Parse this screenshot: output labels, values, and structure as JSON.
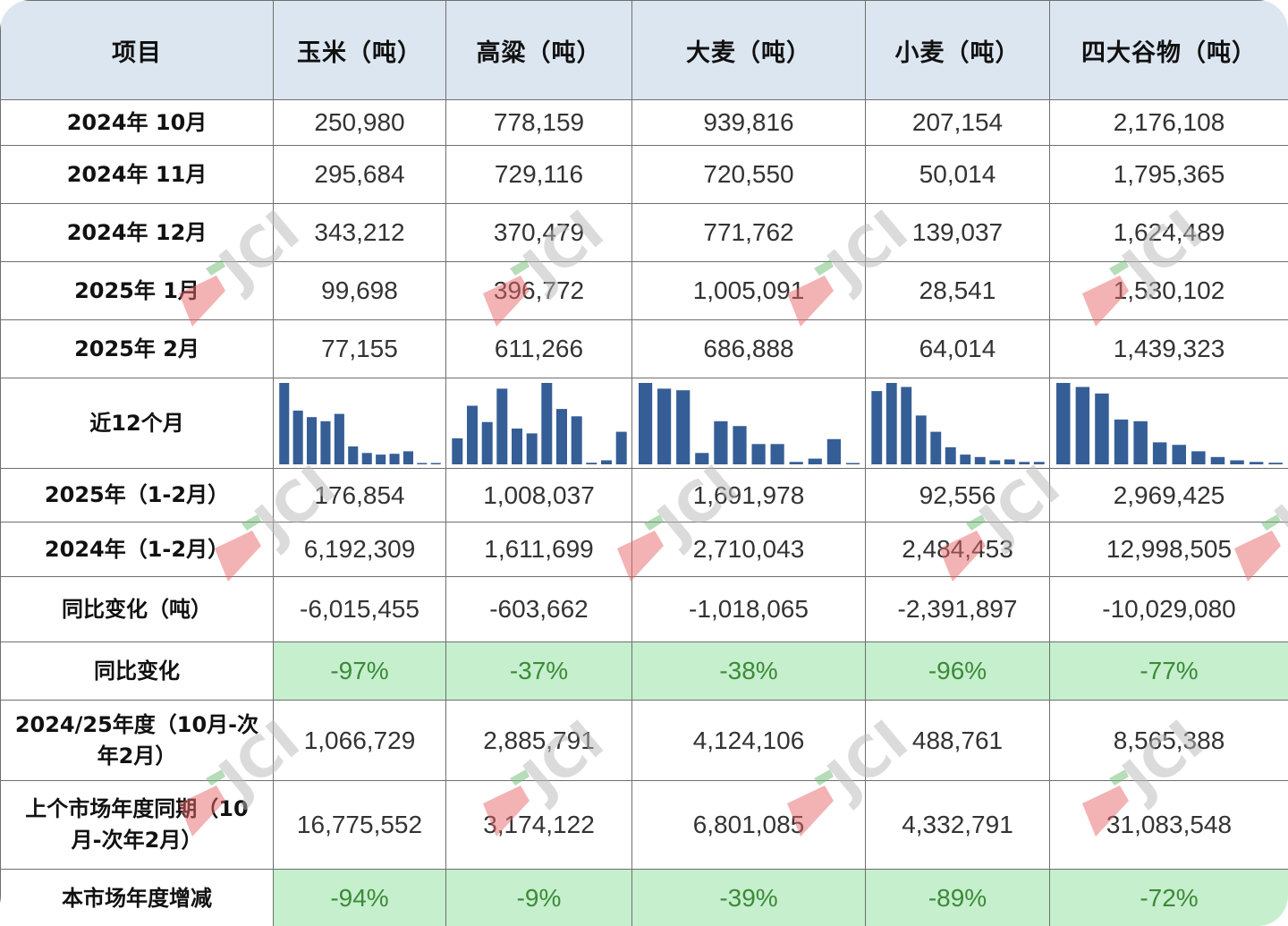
{
  "header": [
    "项目",
    "玉米（吨）",
    "高粱（吨）",
    "大麦（吨）",
    "小麦（吨）",
    "四大谷物（吨）"
  ],
  "rows": [
    {
      "label": "2024年 10月",
      "values": [
        "250,980",
        "778,159",
        "939,816",
        "207,154",
        "2,176,108"
      ]
    },
    {
      "label": "2024年 11月",
      "values": [
        "295,684",
        "729,116",
        "720,550",
        "50,014",
        "1,795,365"
      ]
    },
    {
      "label": "2024年 12月",
      "values": [
        "343,212",
        "370,479",
        "771,762",
        "139,037",
        "1,624,489"
      ]
    },
    {
      "label": "2025年 1月",
      "values": [
        "99,698",
        "396,772",
        "1,005,091",
        "28,541",
        "1,530,102"
      ]
    },
    {
      "label": "2025年 2月",
      "values": [
        "77,155",
        "611,266",
        "686,888",
        "64,014",
        "1,439,323"
      ]
    }
  ],
  "sparkline_row": {
    "label": "近12个月",
    "bar_color": "#365e96",
    "series": [
      [
        1.0,
        0.66,
        0.58,
        0.53,
        0.62,
        0.22,
        0.14,
        0.12,
        0.13,
        0.16,
        0.01,
        0.01
      ],
      [
        0.32,
        0.72,
        0.52,
        0.93,
        0.44,
        0.38,
        1.0,
        0.68,
        0.59,
        0.02,
        0.05,
        0.4
      ],
      [
        1.0,
        0.93,
        0.91,
        0.14,
        0.53,
        0.47,
        0.25,
        0.25,
        0.03,
        0.07,
        0.31,
        0.01
      ],
      [
        0.9,
        1.0,
        0.95,
        0.6,
        0.4,
        0.21,
        0.12,
        0.09,
        0.05,
        0.06,
        0.03,
        0.03
      ],
      [
        1.0,
        0.95,
        0.87,
        0.55,
        0.53,
        0.27,
        0.24,
        0.16,
        0.09,
        0.05,
        0.03,
        0.02
      ]
    ]
  },
  "rows_mid": [
    {
      "label": "2025年（1-2月）",
      "values": [
        "176,854",
        "1,008,037",
        "1,691,978",
        "92,556",
        "2,969,425"
      ],
      "type": "num"
    },
    {
      "label": "2024年（1-2月）",
      "values": [
        "6,192,309",
        "1,611,699",
        "2,710,043",
        "2,484,453",
        "12,998,505"
      ],
      "type": "num"
    },
    {
      "label": "同比变化（吨）",
      "values": [
        "-6,015,455",
        "-603,662",
        "-1,018,065",
        "-2,391,897",
        "-10,029,080"
      ],
      "type": "num"
    },
    {
      "label": "同比变化",
      "values": [
        "-97%",
        "-37%",
        "-38%",
        "-96%",
        "-77%"
      ],
      "type": "pct"
    },
    {
      "label_lines": [
        "2024/25年度（10月-次",
        "年2月）"
      ],
      "values": [
        "1,066,729",
        "2,885,791",
        "4,124,106",
        "488,761",
        "8,565,388"
      ],
      "type": "num"
    },
    {
      "label_lines": [
        "上个市场年度同期（10",
        "月-次年2月）"
      ],
      "values": [
        "16,775,552",
        "3,174,122",
        "6,801,085",
        "4,332,791",
        "31,083,548"
      ],
      "type": "num"
    },
    {
      "label": "本市场年度增减",
      "values": [
        "-94%",
        "-9%",
        "-39%",
        "-89%",
        "-72%"
      ],
      "type": "pct"
    }
  ],
  "watermark": {
    "text": "JCI",
    "colors": {
      "red": "#e8676a",
      "green": "#6dbd73",
      "gray": "#b9b9b9"
    }
  }
}
